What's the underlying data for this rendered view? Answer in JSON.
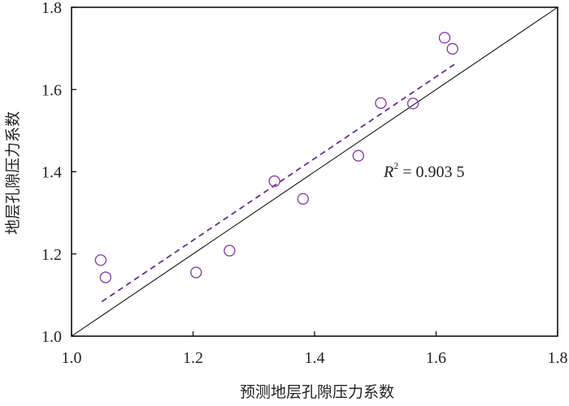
{
  "chart_data": {
    "type": "scatter",
    "xlabel": "预测地层孔隙压力系数",
    "ylabel": "地层孔隙压力系数",
    "xlim": [
      1.0,
      1.8
    ],
    "ylim": [
      1.0,
      1.8
    ],
    "x_ticks": [
      "1.0",
      "1.2",
      "1.4",
      "1.6",
      "1.8"
    ],
    "y_ticks": [
      "1.0",
      "1.2",
      "1.4",
      "1.6",
      "1.8"
    ],
    "grid": false,
    "points": [
      {
        "x": 1.048,
        "y": 1.185
      },
      {
        "x": 1.056,
        "y": 1.143
      },
      {
        "x": 1.205,
        "y": 1.155
      },
      {
        "x": 1.26,
        "y": 1.208
      },
      {
        "x": 1.334,
        "y": 1.377
      },
      {
        "x": 1.381,
        "y": 1.334
      },
      {
        "x": 1.472,
        "y": 1.439
      },
      {
        "x": 1.509,
        "y": 1.567
      },
      {
        "x": 1.562,
        "y": 1.566
      },
      {
        "x": 1.614,
        "y": 1.726
      },
      {
        "x": 1.627,
        "y": 1.699
      }
    ],
    "reference_line": {
      "from": [
        1.0,
        1.0
      ],
      "to": [
        1.8,
        1.8
      ]
    },
    "fit_line": {
      "from": [
        1.05,
        1.084
      ],
      "to": [
        1.63,
        1.661
      ],
      "style": "dashed"
    },
    "annotation": {
      "symbol": "R",
      "exponent": "2",
      "text": " = 0.903 5"
    },
    "colors": {
      "marker": "#8a3fa6",
      "fit_line": "#6a2c8f",
      "reference_line": "#000000",
      "axis": "#000000"
    }
  }
}
